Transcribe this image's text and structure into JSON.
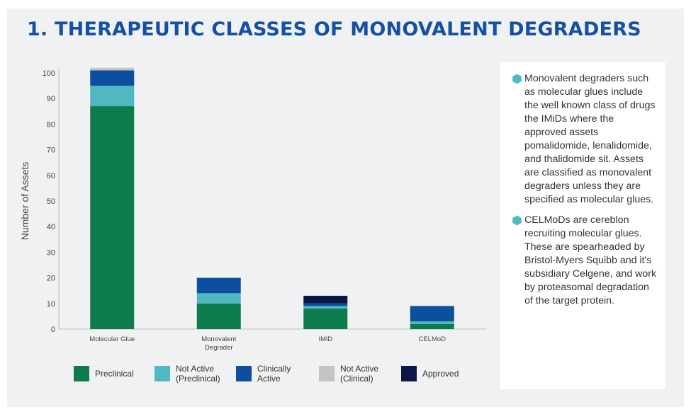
{
  "page": {
    "title": "1. THERAPEUTIC CLASSES OF MONOVALENT DEGRADERS"
  },
  "chart_data": {
    "type": "bar",
    "stacked": true,
    "ylabel": "Number of Assets",
    "ylim": [
      0,
      100
    ],
    "yticks": [
      0,
      10,
      20,
      30,
      40,
      50,
      60,
      70,
      80,
      90,
      100
    ],
    "grid": false,
    "legend_position": "bottom",
    "categories": [
      "Molecular Glue",
      "Monovalent Degrader",
      "IMiD",
      "CELMoD"
    ],
    "series": [
      {
        "name": "Preclinical",
        "color": "#0e7b4c",
        "values": [
          87,
          10,
          8,
          2
        ]
      },
      {
        "name": "Not Active (Preclinical)",
        "color": "#4fb8c0",
        "values": [
          8,
          4,
          1,
          1
        ]
      },
      {
        "name": "Clinically Active",
        "color": "#0b4f9e",
        "values": [
          6,
          6,
          1,
          6
        ]
      },
      {
        "name": "Not Active (Clinical)",
        "color": "#c4c4c4",
        "values": [
          1,
          0,
          0,
          0
        ]
      },
      {
        "name": "Approved",
        "color": "#0b1747",
        "values": [
          0,
          0,
          3,
          0
        ]
      }
    ]
  },
  "textbox": {
    "bullets": [
      "Monovalent degraders such as molecular glues include the well known class of drugs the IMiDs where the approved assets pomalidomide, lenalidomide, and thalidomide sit. Assets are classified as monovalent degraders unless they are specified as molecular glues.",
      "CELMoDs are cereblon recruiting molecular glues. These are spearheaded by Bristol-Myers Squibb and it's subsidiary Celgene, and work by proteasomal degradation of the target protein."
    ],
    "bullet_icon": "hexagon-bullet-icon",
    "bullet_color": "#4fb8c0"
  }
}
